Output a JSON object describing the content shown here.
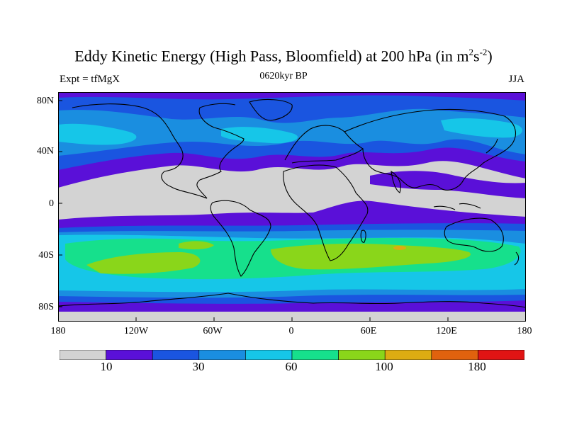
{
  "title": {
    "main_prefix": "Eddy Kinetic Energy (High Pass, Bloomfield) at 200 hPa (in m",
    "sup1": "2",
    "mid": "s",
    "sup2": "-2",
    "suffix": ")"
  },
  "subtitle": "0620kyr BP",
  "left_label": "Expt = tfMgX",
  "right_label": "JJA",
  "axes": {
    "lat_ticks": [
      "80N",
      "40N",
      "0",
      "40S",
      "80S"
    ],
    "lon_ticks": [
      "180",
      "120W",
      "60W",
      "0",
      "60E",
      "120E",
      "180"
    ]
  },
  "colorbar": {
    "colors": [
      "#d3d3d3",
      "#5a10d8",
      "#1a55e0",
      "#1a8ee0",
      "#16c6e8",
      "#16e08c",
      "#8ad61a",
      "#dcac12",
      "#e0620e",
      "#e01414"
    ],
    "labels": [
      "10",
      "30",
      "60",
      "100",
      "180"
    ]
  }
}
